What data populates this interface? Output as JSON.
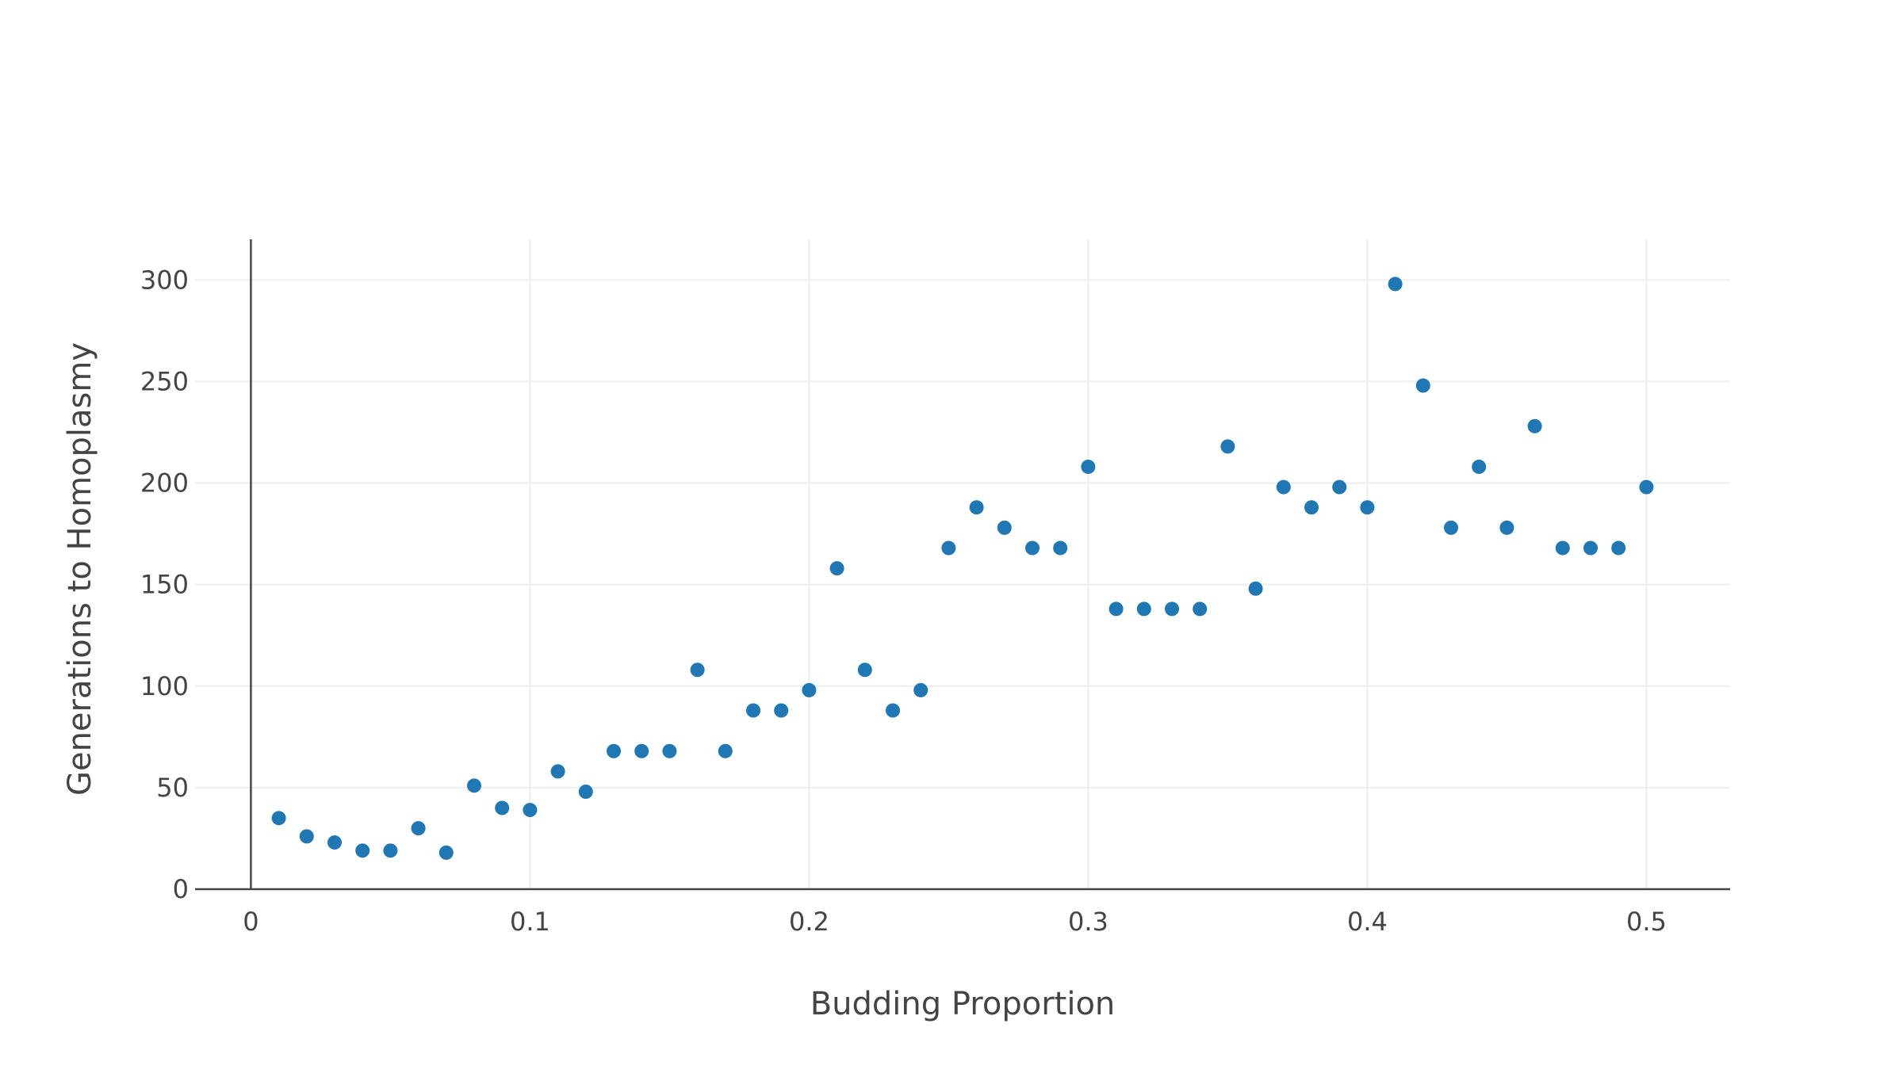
{
  "chart_data": {
    "type": "scatter",
    "xlabel": "Budding Proportion",
    "ylabel": "Generations to Homoplasmy",
    "xlim": [
      -0.02,
      0.53
    ],
    "ylim": [
      0,
      320
    ],
    "x_ticks": [
      0,
      0.1,
      0.2,
      0.3,
      0.4,
      0.5
    ],
    "x_tick_labels": [
      "0",
      "0.1",
      "0.2",
      "0.3",
      "0.4",
      "0.5"
    ],
    "y_ticks": [
      0,
      50,
      100,
      150,
      200,
      250,
      300
    ],
    "y_tick_labels": [
      "0",
      "50",
      "100",
      "150",
      "200",
      "250",
      "300"
    ],
    "grid": true,
    "marker_color": "#1f77b4",
    "series": [
      {
        "x": [
          0.01,
          0.02,
          0.03,
          0.04,
          0.05,
          0.06,
          0.07,
          0.08,
          0.09,
          0.1,
          0.11,
          0.12,
          0.13,
          0.14,
          0.15,
          0.16,
          0.17,
          0.18,
          0.19,
          0.2,
          0.21,
          0.22,
          0.23,
          0.24,
          0.25,
          0.26,
          0.27,
          0.28,
          0.29,
          0.3,
          0.31,
          0.32,
          0.33,
          0.34,
          0.35,
          0.36,
          0.37,
          0.38,
          0.39,
          0.4,
          0.41,
          0.42,
          0.43,
          0.44,
          0.45,
          0.46,
          0.47,
          0.48,
          0.49,
          0.5
        ],
        "y": [
          35,
          26,
          23,
          19,
          19,
          30,
          18,
          51,
          40,
          39,
          58,
          48,
          68,
          68,
          68,
          108,
          68,
          88,
          88,
          98,
          158,
          108,
          88,
          98,
          168,
          188,
          178,
          168,
          168,
          208,
          138,
          138,
          138,
          138,
          218,
          148,
          198,
          188,
          198,
          188,
          298,
          248,
          178,
          208,
          178,
          228,
          168,
          168,
          168,
          198
        ]
      }
    ]
  }
}
